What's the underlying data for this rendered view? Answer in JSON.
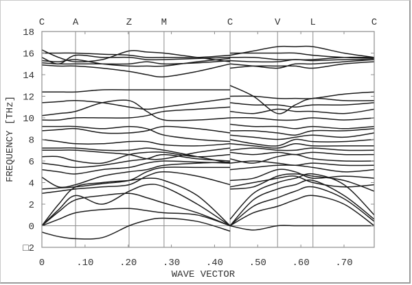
{
  "chart_data": {
    "type": "line",
    "title": "",
    "xlabel": "WAVE VECTOR",
    "ylabel": "FREQUENCY [THz]",
    "xlim": [
      0,
      0.77
    ],
    "ylim": [
      -2,
      18
    ],
    "x_ticks": [
      {
        "v": 0,
        "label": "0"
      },
      {
        "v": 0.1,
        "label": ".10"
      },
      {
        "v": 0.2,
        "label": ".20"
      },
      {
        "v": 0.3,
        "label": ".30"
      },
      {
        "v": 0.4,
        "label": ".40"
      },
      {
        "v": 0.5,
        "label": ".50"
      },
      {
        "v": 0.6,
        "label": ".60"
      },
      {
        "v": 0.7,
        "label": ".70"
      }
    ],
    "y_ticks": [
      {
        "v": 18,
        "label": "18"
      },
      {
        "v": 16,
        "label": "16"
      },
      {
        "v": 14,
        "label": "14"
      },
      {
        "v": 12,
        "label": "12"
      },
      {
        "v": 10,
        "label": "10"
      },
      {
        "v": 8,
        "label": "8"
      },
      {
        "v": 6,
        "label": "6"
      },
      {
        "v": 4,
        "label": "4"
      },
      {
        "v": 2,
        "label": "2"
      },
      {
        "v": 0,
        "label": "0"
      },
      {
        "v": -2,
        "label": "□2"
      }
    ],
    "high_symmetry_points": [
      {
        "label": "C",
        "k": 0.0
      },
      {
        "label": "A",
        "k": 0.078
      },
      {
        "label": "Z",
        "k": 0.202
      },
      {
        "label": "M",
        "k": 0.283
      },
      {
        "label": "C",
        "k": 0.436
      },
      {
        "label": "V",
        "k": 0.546
      },
      {
        "label": "L",
        "k": 0.628
      },
      {
        "label": "C",
        "k": 0.77
      }
    ],
    "grid": {
      "vertical_at_symmetry_points": true,
      "zero_line": true
    },
    "legend": "none",
    "segments": [
      {
        "name": "C-A-Z-M-C",
        "k": [
          0.0,
          0.039,
          0.078,
          0.14,
          0.202,
          0.243,
          0.283,
          0.36,
          0.436
        ],
        "bands": [
          [
            -0.6,
            -1.0,
            -1.2,
            -1.1,
            0.0,
            0.5,
            0.7,
            0.4,
            -0.5
          ],
          [
            0.0,
            0.6,
            1.2,
            1.5,
            1.6,
            1.4,
            1.2,
            1.0,
            0.0
          ],
          [
            0.0,
            1.3,
            2.4,
            2.8,
            3.0,
            2.6,
            2.1,
            1.2,
            0.0
          ],
          [
            0.0,
            1.5,
            2.8,
            2.0,
            3.2,
            3.8,
            3.6,
            2.0,
            0.0
          ],
          [
            0.0,
            2.0,
            3.6,
            4.0,
            4.2,
            4.4,
            4.2,
            2.8,
            0.0
          ],
          [
            3.0,
            3.2,
            3.4,
            3.6,
            3.8,
            4.6,
            5.0,
            4.6,
            3.8
          ],
          [
            3.4,
            3.5,
            3.6,
            3.9,
            4.2,
            5.0,
            5.4,
            5.4,
            5.4
          ],
          [
            4.5,
            3.6,
            3.8,
            4.6,
            5.0,
            5.2,
            5.6,
            5.8,
            5.9
          ],
          [
            5.2,
            5.0,
            4.8,
            5.2,
            5.4,
            5.8,
            6.0,
            5.9,
            5.8
          ],
          [
            5.8,
            5.6,
            5.4,
            5.6,
            6.0,
            6.2,
            6.6,
            6.2,
            6.0
          ],
          [
            6.4,
            6.4,
            6.0,
            5.8,
            6.6,
            6.8,
            6.8,
            6.4,
            6.6
          ],
          [
            7.0,
            7.0,
            7.0,
            6.8,
            6.6,
            6.2,
            6.2,
            6.8,
            7.2
          ],
          [
            7.2,
            7.2,
            7.2,
            7.0,
            7.0,
            7.2,
            7.0,
            6.4,
            5.8
          ],
          [
            8.0,
            7.8,
            7.6,
            7.6,
            7.8,
            7.8,
            7.5,
            7.4,
            7.6
          ],
          [
            8.8,
            8.9,
            9.0,
            8.6,
            8.6,
            8.8,
            9.2,
            9.0,
            8.6
          ],
          [
            9.2,
            9.2,
            9.2,
            9.0,
            9.2,
            9.0,
            8.4,
            8.0,
            7.8
          ],
          [
            9.8,
            9.8,
            10.0,
            10.0,
            10.0,
            10.2,
            10.6,
            10.8,
            11.0
          ],
          [
            10.2,
            10.4,
            10.6,
            11.4,
            11.6,
            10.6,
            9.8,
            9.8,
            10.0
          ],
          [
            11.4,
            11.5,
            11.6,
            11.4,
            11.0,
            10.8,
            11.0,
            11.4,
            11.8
          ],
          [
            12.4,
            12.4,
            12.4,
            12.6,
            12.6,
            12.6,
            12.6,
            12.6,
            12.6
          ],
          [
            14.9,
            14.8,
            14.8,
            14.6,
            14.3,
            14.0,
            13.8,
            14.3,
            15.0
          ],
          [
            15.1,
            15.0,
            15.0,
            15.0,
            15.0,
            15.2,
            15.0,
            15.1,
            15.3
          ],
          [
            15.3,
            15.2,
            15.4,
            15.0,
            14.8,
            14.8,
            14.8,
            15.2,
            15.5
          ],
          [
            15.6,
            15.0,
            15.8,
            15.6,
            15.6,
            15.4,
            15.4,
            15.5,
            15.6
          ],
          [
            16.0,
            16.0,
            16.0,
            15.9,
            15.8,
            15.6,
            15.6,
            15.6,
            15.8
          ],
          [
            16.3,
            15.6,
            15.2,
            15.4,
            16.2,
            16.1,
            16.0,
            15.6,
            15.2
          ]
        ]
      },
      {
        "name": "C-V-L-C",
        "k": [
          0.436,
          0.49,
          0.546,
          0.587,
          0.628,
          0.7,
          0.77
        ],
        "bands": [
          [
            0.0,
            -0.4,
            0.0,
            0.0,
            0.0,
            0.0,
            0.0
          ],
          [
            0.0,
            1.2,
            1.8,
            2.4,
            2.8,
            2.0,
            0.0
          ],
          [
            0.0,
            1.8,
            2.6,
            3.2,
            3.6,
            2.5,
            0.4
          ],
          [
            0.0,
            2.4,
            3.4,
            3.8,
            4.2,
            2.8,
            0.6
          ],
          [
            0.6,
            3.0,
            4.0,
            4.4,
            4.8,
            3.8,
            1.0
          ],
          [
            3.4,
            3.6,
            4.6,
            4.8,
            4.6,
            4.2,
            3.2
          ],
          [
            3.6,
            4.0,
            4.4,
            4.6,
            4.0,
            3.6,
            3.8
          ],
          [
            4.2,
            4.4,
            5.2,
            5.0,
            4.4,
            4.6,
            4.4
          ],
          [
            5.2,
            5.4,
            5.6,
            5.6,
            5.4,
            5.0,
            5.2
          ],
          [
            5.8,
            6.0,
            5.8,
            5.6,
            5.8,
            5.6,
            5.6
          ],
          [
            6.2,
            5.8,
            6.4,
            6.6,
            6.2,
            6.0,
            6.0
          ],
          [
            6.8,
            6.6,
            6.8,
            6.6,
            6.8,
            6.6,
            6.6
          ],
          [
            7.0,
            7.2,
            7.0,
            7.0,
            7.2,
            7.0,
            7.0
          ],
          [
            7.6,
            7.4,
            7.2,
            7.6,
            7.4,
            7.4,
            7.4
          ],
          [
            8.0,
            7.6,
            7.4,
            8.0,
            7.8,
            7.8,
            8.0
          ],
          [
            8.4,
            8.2,
            8.0,
            8.2,
            8.4,
            8.2,
            8.6
          ],
          [
            8.8,
            8.8,
            8.6,
            8.4,
            8.8,
            8.8,
            9.0
          ],
          [
            9.4,
            9.2,
            9.2,
            9.0,
            9.2,
            9.0,
            9.2
          ],
          [
            10.0,
            10.0,
            9.8,
            9.8,
            10.0,
            9.8,
            10.0
          ],
          [
            10.6,
            10.4,
            10.8,
            10.6,
            10.6,
            10.4,
            10.8
          ],
          [
            11.4,
            11.2,
            11.2,
            11.0,
            11.2,
            11.2,
            11.4
          ],
          [
            13.0,
            12.0,
            10.4,
            11.2,
            11.8,
            11.6,
            11.6
          ],
          [
            12.0,
            12.0,
            11.8,
            11.8,
            11.8,
            12.2,
            12.4
          ],
          [
            14.6,
            14.8,
            14.8,
            14.8,
            14.6,
            15.0,
            15.2
          ],
          [
            15.0,
            14.8,
            14.6,
            15.0,
            15.0,
            15.2,
            15.4
          ],
          [
            15.3,
            15.2,
            15.2,
            15.4,
            15.3,
            15.4,
            15.4
          ],
          [
            15.6,
            15.6,
            15.4,
            15.4,
            15.4,
            15.6,
            15.6
          ],
          [
            15.8,
            16.2,
            16.6,
            16.6,
            16.6,
            16.0,
            15.6
          ],
          [
            16.0,
            16.0,
            16.0,
            16.0,
            15.8,
            15.6,
            15.5
          ]
        ]
      }
    ]
  }
}
